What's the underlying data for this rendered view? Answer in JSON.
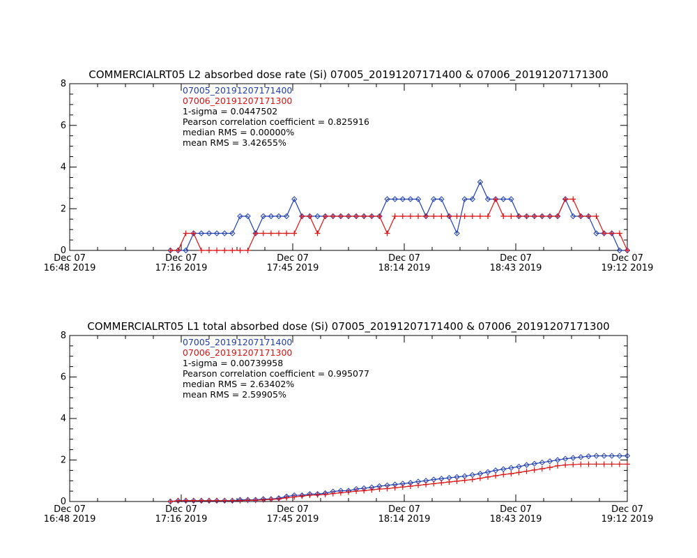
{
  "colors": {
    "series1": "#1f3fb0",
    "series2": "#e01010",
    "axis": "#000000"
  },
  "x_tick_labels": [
    [
      "Dec 07",
      "16:48 2019"
    ],
    [
      "Dec 07",
      "17:16 2019"
    ],
    [
      "Dec 07",
      "17:45 2019"
    ],
    [
      "Dec 07",
      "18:14 2019"
    ],
    [
      "Dec 07",
      "18:43 2019"
    ],
    [
      "Dec 07",
      "19:12 2019"
    ]
  ],
  "chart_data": [
    {
      "type": "line",
      "title": "COMMERCIALRT05 L2 absorbed dose rate (Si) 07005_20191207171400 & 07006_20191207171300",
      "xlabel": "",
      "ylabel": "",
      "ylim": [
        0,
        8
      ],
      "y_ticks": [
        0,
        2,
        4,
        6,
        8
      ],
      "xlim_minutes": [
        0,
        144
      ],
      "x_note": "x values are minutes after Dec 07 16:48 2019",
      "annotations": [
        {
          "text": "07005_20191207171400",
          "color": "#1f3fb0"
        },
        {
          "text": "07006_20191207171300",
          "color": "#e01010"
        },
        {
          "text": "1-sigma = 0.0447502",
          "color": "#000000"
        },
        {
          "text": "Pearson correlation coefficient = 0.825916",
          "color": "#000000"
        },
        {
          "text": "median RMS = 0.00000%",
          "color": "#000000"
        },
        {
          "text": "mean RMS = 3.42655%",
          "color": "#000000"
        }
      ],
      "series": [
        {
          "name": "07005_20191207171400",
          "color": "#1f3fb0",
          "marker": "diamond",
          "x": [
            26,
            28,
            30,
            32,
            34,
            36,
            38,
            40,
            42,
            44,
            46,
            48,
            50,
            52,
            54,
            56,
            58,
            60,
            62,
            64,
            66,
            68,
            70,
            72,
            74,
            76,
            78,
            80,
            82,
            84,
            86,
            88,
            90,
            92,
            94,
            96,
            98,
            100,
            102,
            104,
            106,
            108,
            110,
            112,
            114,
            116,
            118,
            120,
            122,
            124,
            126,
            128,
            130,
            132,
            134,
            136,
            138,
            140,
            142,
            144
          ],
          "y": [
            0,
            0,
            0,
            0.82,
            0.82,
            0.82,
            0.82,
            0.82,
            0.82,
            1.64,
            1.64,
            0.82,
            1.64,
            1.64,
            1.64,
            1.64,
            2.46,
            1.64,
            1.64,
            1.64,
            1.64,
            1.64,
            1.64,
            1.64,
            1.64,
            1.64,
            1.64,
            1.64,
            2.46,
            2.46,
            2.46,
            2.46,
            2.46,
            1.64,
            2.46,
            2.46,
            1.64,
            0.82,
            2.46,
            2.46,
            3.28,
            2.46,
            2.46,
            2.46,
            2.46,
            1.64,
            1.64,
            1.64,
            1.64,
            1.64,
            1.64,
            2.46,
            1.64,
            1.64,
            1.64,
            0.82,
            0.82,
            0.82,
            0,
            0
          ]
        },
        {
          "name": "07006_20191207171300",
          "color": "#e01010",
          "marker": "plus",
          "x": [
            26,
            28,
            30,
            32,
            34,
            36,
            38,
            40,
            42,
            44,
            46,
            48,
            50,
            52,
            54,
            56,
            58,
            60,
            62,
            64,
            66,
            68,
            70,
            72,
            74,
            76,
            78,
            80,
            82,
            84,
            86,
            88,
            90,
            92,
            94,
            96,
            98,
            100,
            102,
            104,
            106,
            108,
            110,
            112,
            114,
            116,
            118,
            120,
            122,
            124,
            126,
            128,
            130,
            132,
            134,
            136,
            138,
            140,
            142,
            144
          ],
          "y": [
            0,
            0,
            0.82,
            0.82,
            0,
            0,
            0,
            0,
            0,
            0,
            0,
            0.82,
            0.82,
            0.82,
            0.82,
            0.82,
            0.82,
            1.64,
            1.64,
            0.82,
            1.64,
            1.64,
            1.64,
            1.64,
            1.64,
            1.64,
            1.64,
            1.64,
            0.82,
            1.64,
            1.64,
            1.64,
            1.64,
            1.64,
            1.64,
            1.64,
            1.64,
            1.64,
            1.64,
            1.64,
            1.64,
            1.64,
            2.46,
            1.64,
            1.64,
            1.64,
            1.64,
            1.64,
            1.64,
            1.64,
            1.64,
            2.46,
            2.46,
            1.64,
            1.64,
            1.64,
            0.82,
            0.82,
            0.82,
            0
          ]
        }
      ]
    },
    {
      "type": "line",
      "title": "COMMERCIALRT05 L1 total absorbed dose (Si) 07005_20191207171400 & 07006_20191207171300",
      "xlabel": "",
      "ylabel": "",
      "ylim": [
        0,
        8
      ],
      "y_ticks": [
        0,
        2,
        4,
        6,
        8
      ],
      "xlim_minutes": [
        0,
        144
      ],
      "x_note": "x values are minutes after Dec 07 16:48 2019",
      "annotations": [
        {
          "text": "07005_20191207171400",
          "color": "#1f3fb0"
        },
        {
          "text": "07006_20191207171300",
          "color": "#e01010"
        },
        {
          "text": "1-sigma = 0.00739958",
          "color": "#000000"
        },
        {
          "text": "Pearson correlation coefficient = 0.995077",
          "color": "#000000"
        },
        {
          "text": "median RMS = 2.63402%",
          "color": "#000000"
        },
        {
          "text": "mean RMS = 2.59905%",
          "color": "#000000"
        }
      ],
      "series": [
        {
          "name": "07005_20191207171400",
          "color": "#1f3fb0",
          "marker": "diamond",
          "x": [
            26,
            28,
            30,
            32,
            34,
            36,
            38,
            40,
            42,
            44,
            46,
            48,
            50,
            52,
            54,
            56,
            58,
            60,
            62,
            64,
            66,
            68,
            70,
            72,
            74,
            76,
            78,
            80,
            82,
            84,
            86,
            88,
            90,
            92,
            94,
            96,
            98,
            100,
            102,
            104,
            106,
            108,
            110,
            112,
            114,
            116,
            118,
            120,
            122,
            124,
            126,
            128,
            130,
            132,
            134,
            136,
            138,
            140,
            142,
            144
          ],
          "y": [
            0,
            0.04,
            0.04,
            0.04,
            0.04,
            0.04,
            0.04,
            0.04,
            0.04,
            0.08,
            0.08,
            0.08,
            0.12,
            0.12,
            0.16,
            0.24,
            0.3,
            0.3,
            0.36,
            0.36,
            0.4,
            0.48,
            0.52,
            0.52,
            0.6,
            0.64,
            0.68,
            0.74,
            0.78,
            0.82,
            0.86,
            0.9,
            0.96,
            1.0,
            1.06,
            1.1,
            1.14,
            1.18,
            1.22,
            1.28,
            1.34,
            1.42,
            1.5,
            1.56,
            1.62,
            1.68,
            1.76,
            1.82,
            1.88,
            1.94,
            2.0,
            2.06,
            2.1,
            2.14,
            2.18,
            2.2,
            2.2,
            2.2,
            2.2,
            2.2
          ]
        },
        {
          "name": "07006_20191207171300",
          "color": "#e01010",
          "marker": "plus",
          "x": [
            26,
            28,
            30,
            32,
            34,
            36,
            38,
            40,
            42,
            44,
            46,
            48,
            50,
            52,
            54,
            56,
            58,
            60,
            62,
            64,
            66,
            68,
            70,
            72,
            74,
            76,
            78,
            80,
            82,
            84,
            86,
            88,
            90,
            92,
            94,
            96,
            98,
            100,
            102,
            104,
            106,
            108,
            110,
            112,
            114,
            116,
            118,
            120,
            122,
            124,
            126,
            128,
            130,
            132,
            134,
            136,
            138,
            140,
            142,
            144
          ],
          "y": [
            0,
            0.04,
            0.04,
            0.04,
            0.04,
            0.04,
            0.04,
            0.04,
            0.04,
            0.04,
            0.06,
            0.06,
            0.08,
            0.1,
            0.12,
            0.18,
            0.22,
            0.26,
            0.3,
            0.32,
            0.34,
            0.38,
            0.42,
            0.46,
            0.5,
            0.52,
            0.56,
            0.6,
            0.62,
            0.66,
            0.7,
            0.74,
            0.78,
            0.82,
            0.86,
            0.9,
            0.94,
            0.98,
            1.02,
            1.06,
            1.12,
            1.18,
            1.24,
            1.3,
            1.34,
            1.4,
            1.46,
            1.52,
            1.58,
            1.64,
            1.72,
            1.76,
            1.78,
            1.8,
            1.8,
            1.8,
            1.8,
            1.8,
            1.8,
            1.8
          ]
        }
      ]
    }
  ]
}
